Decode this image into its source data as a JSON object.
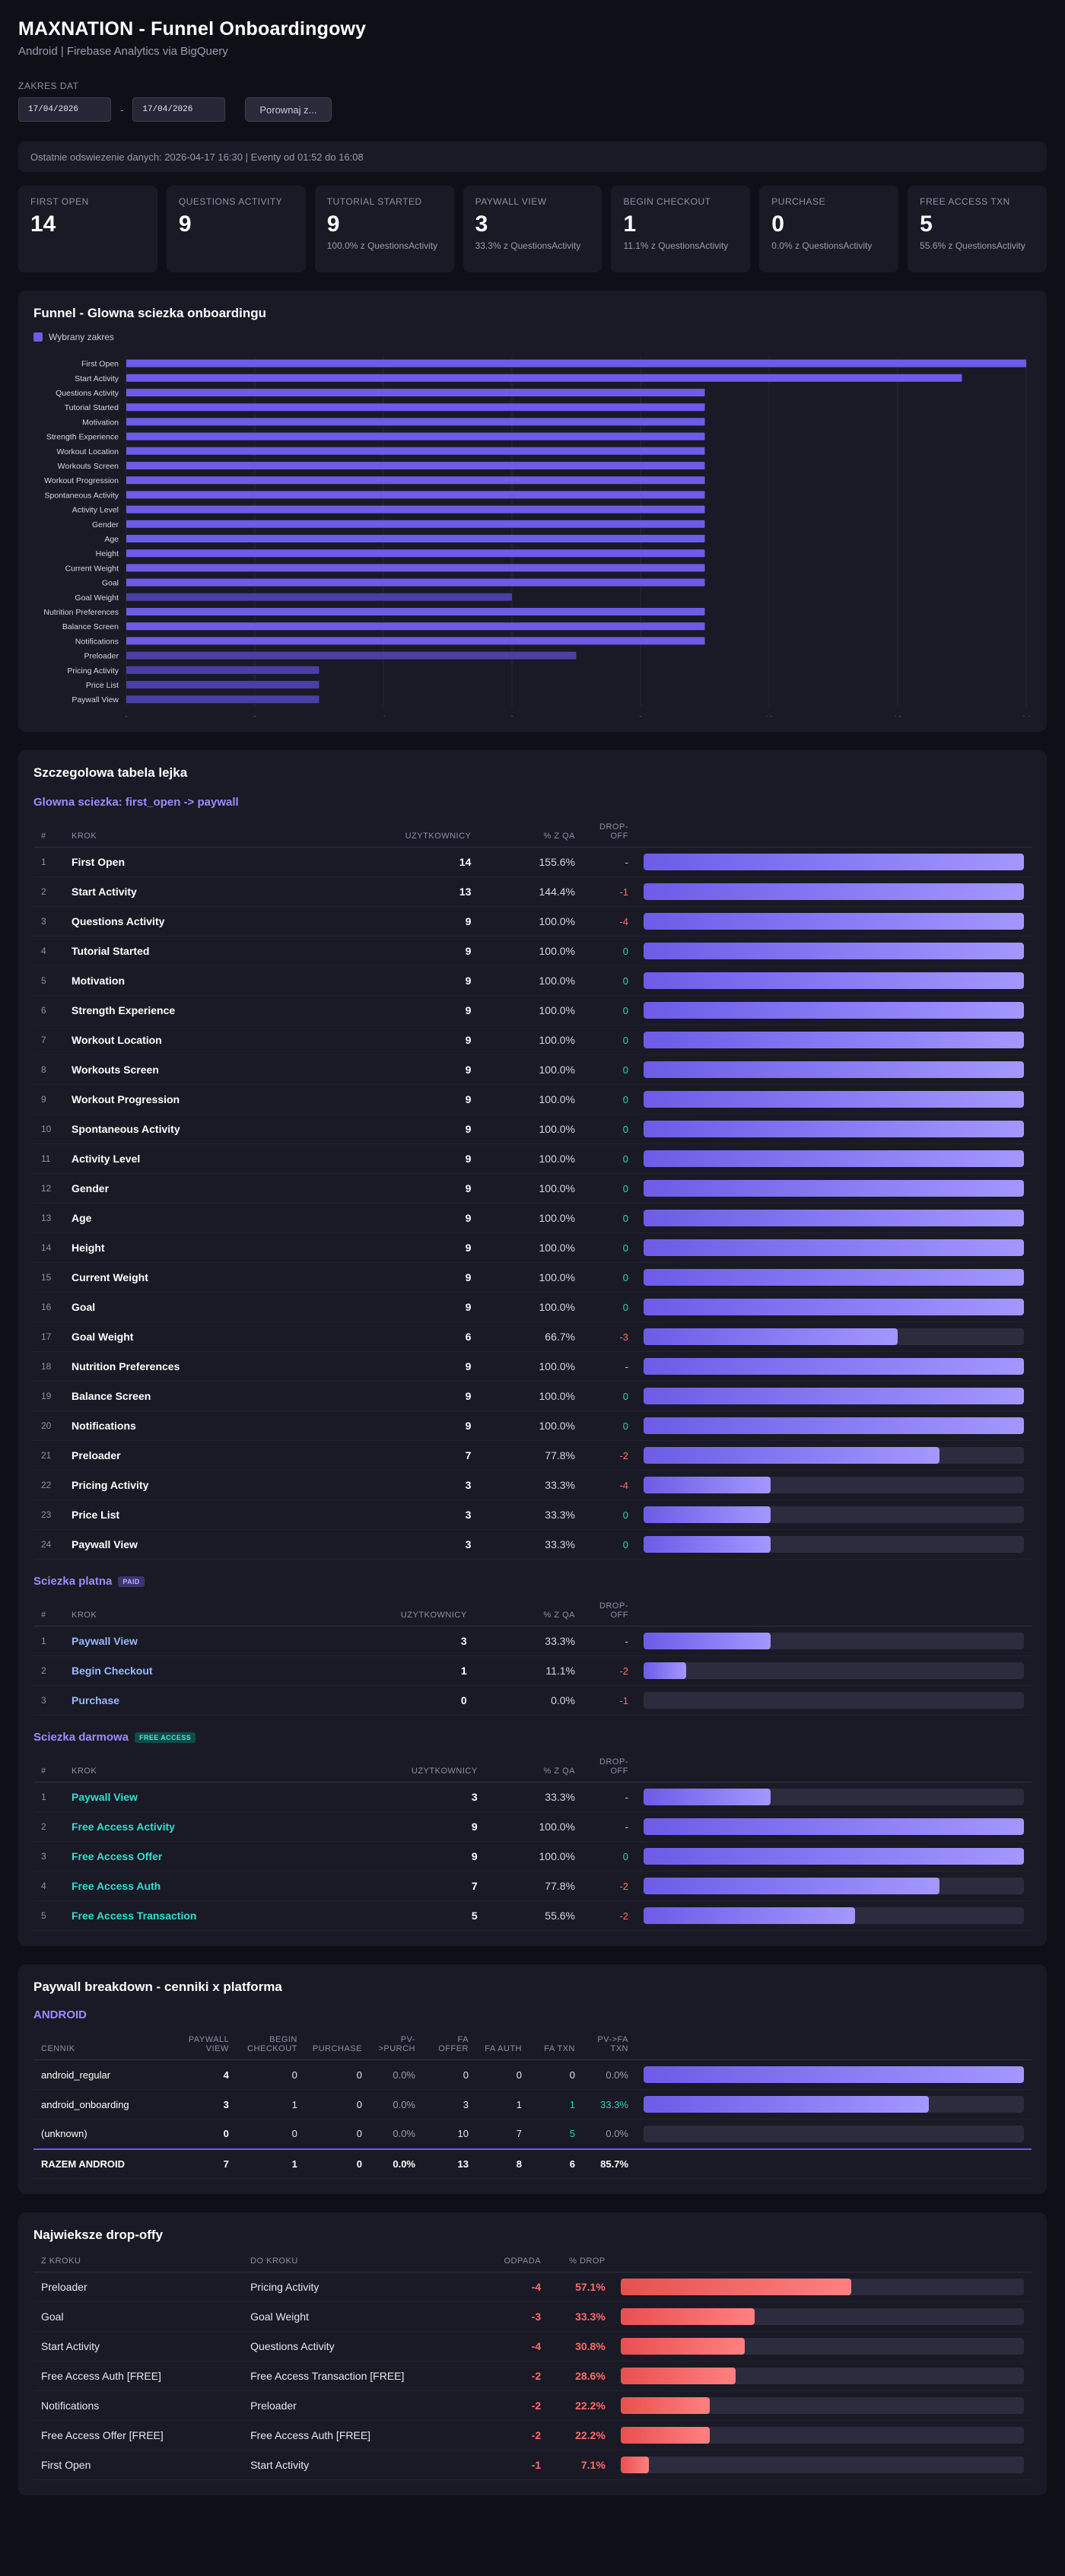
{
  "header": {
    "title": "MAXNATION - Funnel Onboardingowy",
    "subtitle": "Android | Firebase Analytics via BigQuery"
  },
  "range": {
    "label": "ZAKRES DAT",
    "from": "17/04/2026",
    "to": "17/04/2026",
    "separator": "-",
    "compare": "Porownaj z..."
  },
  "status": "Ostatnie odswiezenie danych: 2026-04-17 16:30  |  Eventy od 01:52 do 16:08",
  "kpis": [
    {
      "title": "FIRST OPEN",
      "value": "14",
      "sub": ""
    },
    {
      "title": "QUESTIONS ACTIVITY",
      "value": "9",
      "sub": ""
    },
    {
      "title": "TUTORIAL STARTED",
      "value": "9",
      "sub": "100.0% z QuestionsActivity"
    },
    {
      "title": "PAYWALL VIEW",
      "value": "3",
      "sub": "33.3% z QuestionsActivity"
    },
    {
      "title": "BEGIN CHECKOUT",
      "value": "1",
      "sub": "11.1% z QuestionsActivity"
    },
    {
      "title": "PURCHASE",
      "value": "0",
      "sub": "0.0% z QuestionsActivity"
    },
    {
      "title": "FREE ACCESS TXN",
      "value": "5",
      "sub": "55.6% z QuestionsActivity"
    }
  ],
  "funnel_card": {
    "title": "Funnel - Glowna sciezka onboardingu",
    "legend": "Wybrany zakres"
  },
  "chart_data": {
    "type": "bar",
    "orientation": "horizontal",
    "categories": [
      "First Open",
      "Start Activity",
      "Questions Activity",
      "Tutorial Started",
      "Motivation",
      "Strength Experience",
      "Workout Location",
      "Workouts Screen",
      "Workout Progression",
      "Spontaneous Activity",
      "Activity Level",
      "Gender",
      "Age",
      "Height",
      "Current Weight",
      "Goal",
      "Goal Weight",
      "Nutrition Preferences",
      "Balance Screen",
      "Notifications",
      "Preloader",
      "Pricing Activity",
      "Price List",
      "Paywall View"
    ],
    "series": [
      {
        "name": "Wybrany zakres",
        "values": [
          14,
          13,
          9,
          9,
          9,
          9,
          9,
          9,
          9,
          9,
          9,
          9,
          9,
          9,
          9,
          9,
          6,
          9,
          9,
          9,
          7,
          3,
          3,
          3
        ]
      }
    ],
    "xlim": [
      0,
      14
    ],
    "xticks": [
      "0",
      "2",
      "4",
      "6",
      "8",
      "10",
      "12",
      "14"
    ],
    "grid": true,
    "legend": "top-left",
    "color": "#6c5ce7"
  },
  "detail": {
    "title": "Szczegolowa tabela lejka",
    "cols": {
      "idx": "#",
      "step": "KROK",
      "users": "UZYTKOWNICY",
      "pct": "% Z QA",
      "drop": "DROP-OFF"
    },
    "main": {
      "title": "Glowna sciezka: first_open -> paywall",
      "rows": [
        {
          "i": "1",
          "step": "First Open",
          "users": "14",
          "pct": "155.6%",
          "drop": "-",
          "frac": 1
        },
        {
          "i": "2",
          "step": "Start Activity",
          "users": "13",
          "pct": "144.4%",
          "drop": "-1",
          "frac": 1
        },
        {
          "i": "3",
          "step": "Questions Activity",
          "users": "9",
          "pct": "100.0%",
          "drop": "-4",
          "frac": 1
        },
        {
          "i": "4",
          "step": "Tutorial Started",
          "users": "9",
          "pct": "100.0%",
          "drop": "0",
          "frac": 1
        },
        {
          "i": "5",
          "step": "Motivation",
          "users": "9",
          "pct": "100.0%",
          "drop": "0",
          "frac": 1
        },
        {
          "i": "6",
          "step": "Strength Experience",
          "users": "9",
          "pct": "100.0%",
          "drop": "0",
          "frac": 1
        },
        {
          "i": "7",
          "step": "Workout Location",
          "users": "9",
          "pct": "100.0%",
          "drop": "0",
          "frac": 1
        },
        {
          "i": "8",
          "step": "Workouts Screen",
          "users": "9",
          "pct": "100.0%",
          "drop": "0",
          "frac": 1
        },
        {
          "i": "9",
          "step": "Workout Progression",
          "users": "9",
          "pct": "100.0%",
          "drop": "0",
          "frac": 1
        },
        {
          "i": "10",
          "step": "Spontaneous Activity",
          "users": "9",
          "pct": "100.0%",
          "drop": "0",
          "frac": 1
        },
        {
          "i": "11",
          "step": "Activity Level",
          "users": "9",
          "pct": "100.0%",
          "drop": "0",
          "frac": 1
        },
        {
          "i": "12",
          "step": "Gender",
          "users": "9",
          "pct": "100.0%",
          "drop": "0",
          "frac": 1
        },
        {
          "i": "13",
          "step": "Age",
          "users": "9",
          "pct": "100.0%",
          "drop": "0",
          "frac": 1
        },
        {
          "i": "14",
          "step": "Height",
          "users": "9",
          "pct": "100.0%",
          "drop": "0",
          "frac": 1
        },
        {
          "i": "15",
          "step": "Current Weight",
          "users": "9",
          "pct": "100.0%",
          "drop": "0",
          "frac": 1
        },
        {
          "i": "16",
          "step": "Goal",
          "users": "9",
          "pct": "100.0%",
          "drop": "0",
          "frac": 1
        },
        {
          "i": "17",
          "step": "Goal Weight",
          "users": "6",
          "pct": "66.7%",
          "drop": "-3",
          "frac": 0.667
        },
        {
          "i": "18",
          "step": "Nutrition Preferences",
          "users": "9",
          "pct": "100.0%",
          "drop": "-",
          "frac": 1
        },
        {
          "i": "19",
          "step": "Balance Screen",
          "users": "9",
          "pct": "100.0%",
          "drop": "0",
          "frac": 1
        },
        {
          "i": "20",
          "step": "Notifications",
          "users": "9",
          "pct": "100.0%",
          "drop": "0",
          "frac": 1
        },
        {
          "i": "21",
          "step": "Preloader",
          "users": "7",
          "pct": "77.8%",
          "drop": "-2",
          "frac": 0.778
        },
        {
          "i": "22",
          "step": "Pricing Activity",
          "users": "3",
          "pct": "33.3%",
          "drop": "-4",
          "frac": 0.333
        },
        {
          "i": "23",
          "step": "Price List",
          "users": "3",
          "pct": "33.3%",
          "drop": "0",
          "frac": 0.333
        },
        {
          "i": "24",
          "step": "Paywall View",
          "users": "3",
          "pct": "33.3%",
          "drop": "0",
          "frac": 0.333
        }
      ]
    },
    "paid": {
      "title": "Sciezka platna",
      "badge": "PAID",
      "rows": [
        {
          "i": "1",
          "step": "Paywall View",
          "users": "3",
          "pct": "33.3%",
          "drop": "-",
          "frac": 0.333
        },
        {
          "i": "2",
          "step": "Begin Checkout",
          "users": "1",
          "pct": "11.1%",
          "drop": "-2",
          "frac": 0.111
        },
        {
          "i": "3",
          "step": "Purchase",
          "users": "0",
          "pct": "0.0%",
          "drop": "-1",
          "frac": 0
        }
      ]
    },
    "free": {
      "title": "Sciezka darmowa",
      "badge": "FREE ACCESS",
      "rows": [
        {
          "i": "1",
          "step": "Paywall View",
          "users": "3",
          "pct": "33.3%",
          "drop": "-",
          "frac": 0.333
        },
        {
          "i": "2",
          "step": "Free Access Activity",
          "users": "9",
          "pct": "100.0%",
          "drop": "-",
          "frac": 1
        },
        {
          "i": "3",
          "step": "Free Access Offer",
          "users": "9",
          "pct": "100.0%",
          "drop": "0",
          "frac": 1
        },
        {
          "i": "4",
          "step": "Free Access Auth",
          "users": "7",
          "pct": "77.8%",
          "drop": "-2",
          "frac": 0.778
        },
        {
          "i": "5",
          "step": "Free Access Transaction",
          "users": "5",
          "pct": "55.6%",
          "drop": "-2",
          "frac": 0.556
        }
      ]
    }
  },
  "paywall": {
    "title": "Paywall breakdown - cenniki x platforma",
    "platform": "ANDROID",
    "cols": [
      "CENNIK",
      "PAYWALL VIEW",
      "BEGIN CHECKOUT",
      "PURCHASE",
      "PV->PURCH",
      "FA OFFER",
      "FA AUTH",
      "FA TXN",
      "PV->FA TXN"
    ],
    "rows": [
      {
        "name": "android_regular",
        "pv": "4",
        "bc": "0",
        "pu": "0",
        "pvp": "0.0%",
        "fo": "0",
        "fa": "0",
        "ft": "0",
        "pvfa": "0.0%",
        "frac": 1
      },
      {
        "name": "android_onboarding",
        "pv": "3",
        "bc": "1",
        "pu": "0",
        "pvp": "0.0%",
        "fo": "3",
        "fa": "1",
        "ft": "1",
        "pvfa": "33.3%",
        "frac": 0.75
      },
      {
        "name": "(unknown)",
        "pv": "0",
        "bc": "0",
        "pu": "0",
        "pvp": "0.0%",
        "fo": "10",
        "fa": "7",
        "ft": "5",
        "pvfa": "0.0%",
        "frac": 0
      }
    ],
    "total": {
      "name": "RAZEM ANDROID",
      "pv": "7",
      "bc": "1",
      "pu": "0",
      "pvp": "0.0%",
      "fo": "13",
      "fa": "8",
      "ft": "6",
      "pvfa": "85.7%"
    }
  },
  "drops": {
    "title": "Najwieksze drop-offy",
    "cols": [
      "Z KROKU",
      "DO KROKU",
      "ODPADA",
      "% DROP"
    ],
    "rows": [
      {
        "from": "Preloader",
        "to": "Pricing Activity",
        "n": "-4",
        "pct": "57.1%",
        "frac": 0.571
      },
      {
        "from": "Goal",
        "to": "Goal Weight",
        "n": "-3",
        "pct": "33.3%",
        "frac": 0.333
      },
      {
        "from": "Start Activity",
        "to": "Questions Activity",
        "n": "-4",
        "pct": "30.8%",
        "frac": 0.308
      },
      {
        "from": "Free Access Auth [FREE]",
        "to": "Free Access Transaction [FREE]",
        "n": "-2",
        "pct": "28.6%",
        "frac": 0.286
      },
      {
        "from": "Notifications",
        "to": "Preloader",
        "n": "-2",
        "pct": "22.2%",
        "frac": 0.222
      },
      {
        "from": "Free Access Offer [FREE]",
        "to": "Free Access Auth [FREE]",
        "n": "-2",
        "pct": "22.2%",
        "frac": 0.222
      },
      {
        "from": "First Open",
        "to": "Start Activity",
        "n": "-1",
        "pct": "7.1%",
        "frac": 0.071
      }
    ]
  }
}
